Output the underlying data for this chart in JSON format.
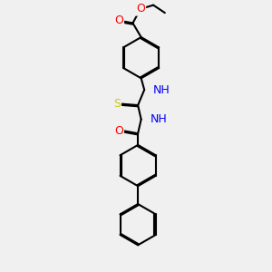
{
  "background_color": "#f0f0f0",
  "bond_color": "#000000",
  "atom_colors": {
    "O": "#ff0000",
    "N": "#0000ff",
    "S": "#cccc00",
    "C": "#000000",
    "H": "#000000"
  },
  "title": "",
  "figsize": [
    3.0,
    3.0
  ],
  "dpi": 100
}
